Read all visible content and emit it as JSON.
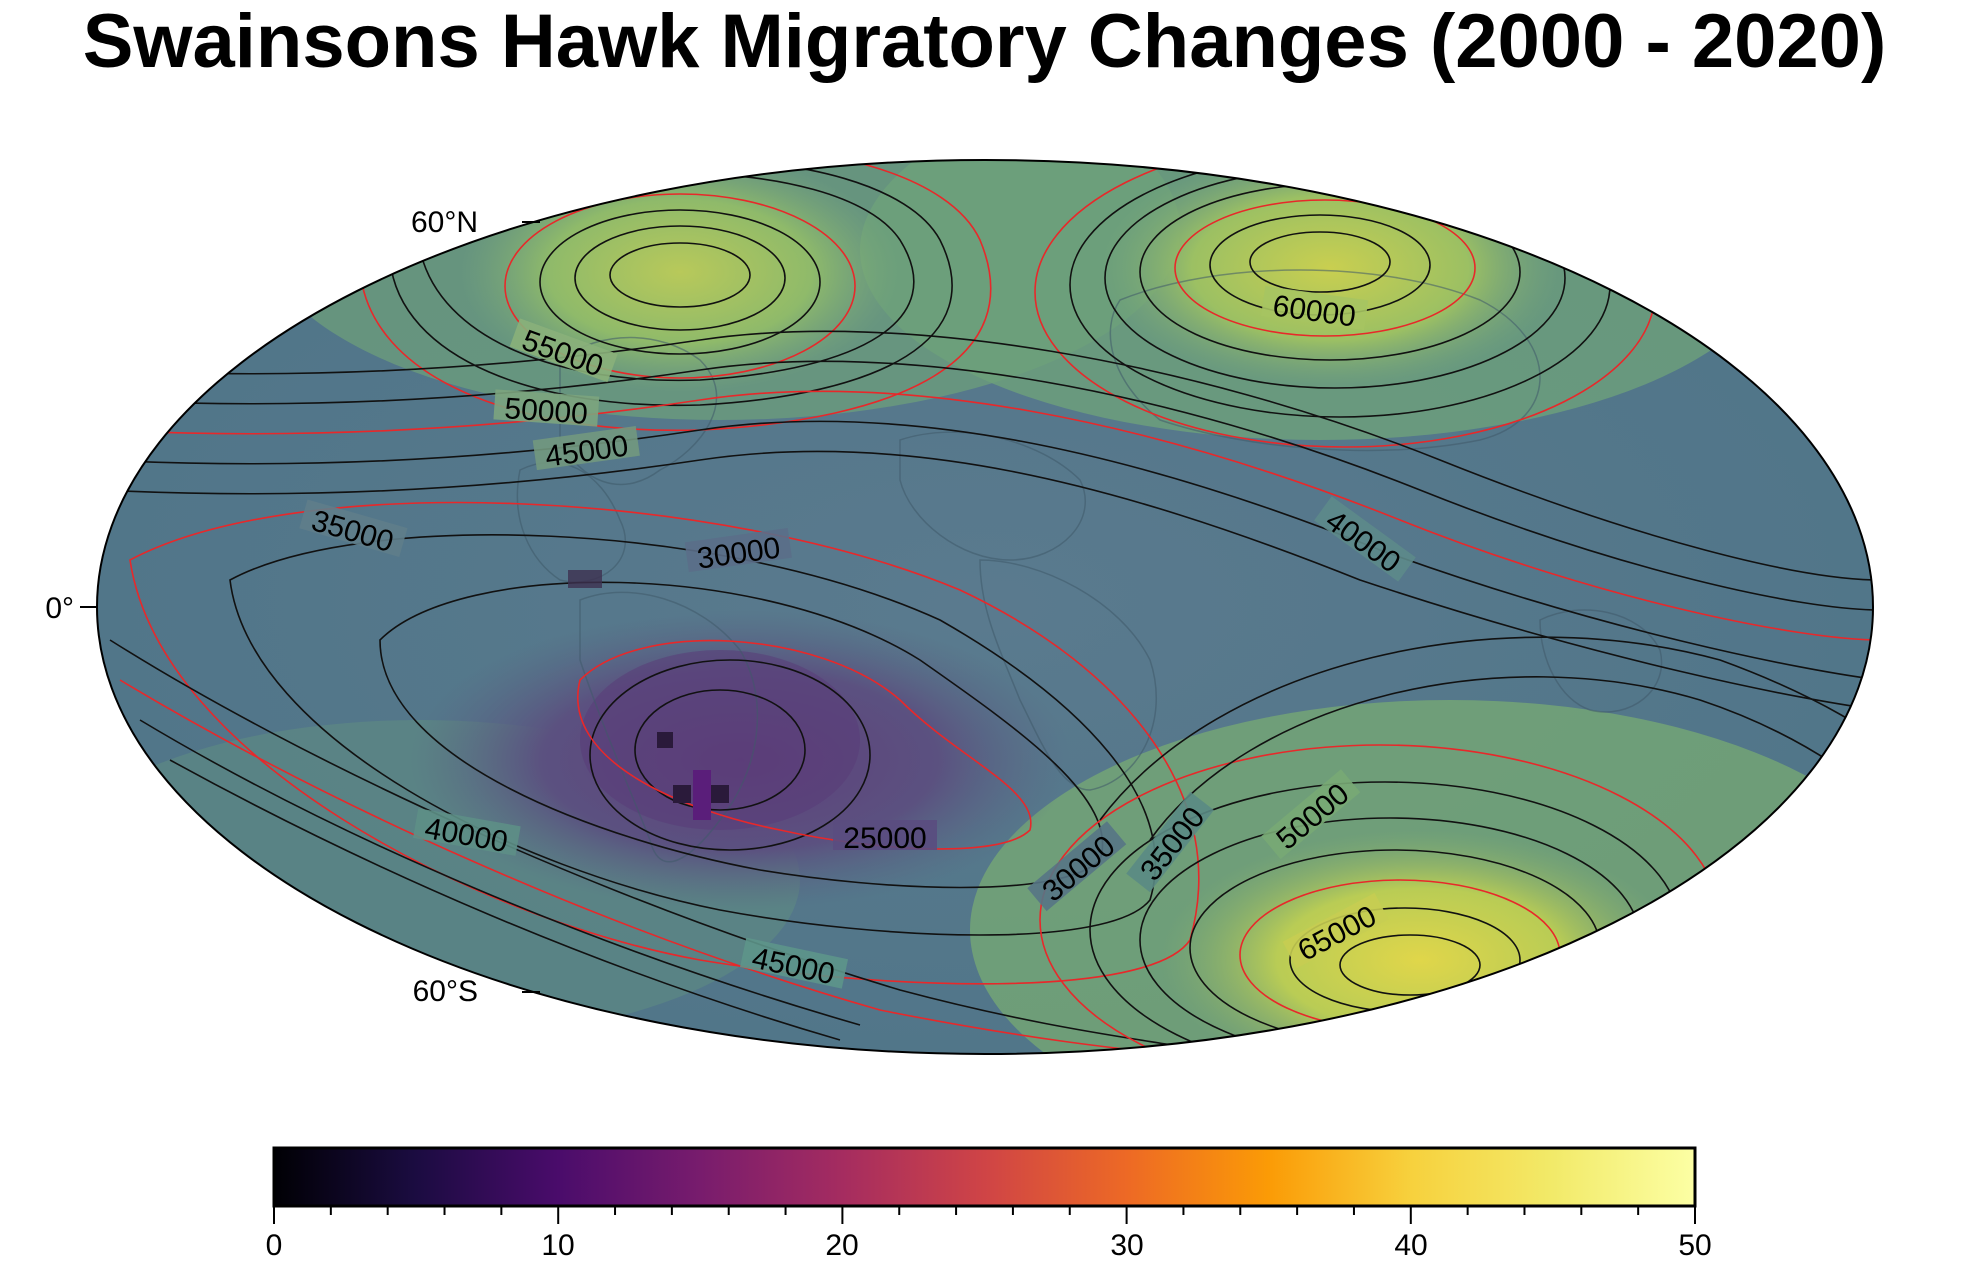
{
  "title": "Swainsons Hawk Migratory Changes (2000 - 2020)",
  "map": {
    "projection": "hammer-aitoff",
    "latitude_labels": [
      "60°N",
      "0°",
      "60°S"
    ],
    "contour_labels": [
      "55000",
      "50000",
      "45000",
      "35000",
      "30000",
      "60000",
      "40000",
      "40000",
      "25000",
      "30000",
      "35000",
      "50000",
      "45000",
      "65000"
    ],
    "contour_colors": {
      "major": "#e8282a",
      "minor": "#111111"
    }
  },
  "colorbar": {
    "colormap": "inferno",
    "tick_labels": [
      "0",
      "10",
      "20",
      "30",
      "40",
      "50"
    ],
    "range": [
      0,
      50
    ]
  }
}
